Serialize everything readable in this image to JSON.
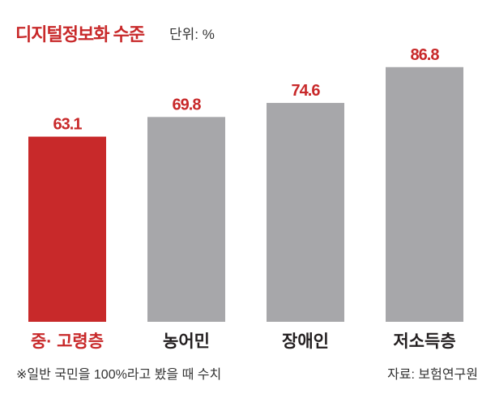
{
  "colors": {
    "title": "#c8292a",
    "value_label": "#c8292a",
    "note": "#333333"
  },
  "chart_data": {
    "type": "bar",
    "title": "디지털정보화 수준",
    "unit_label": "단위: %",
    "categories": [
      "중· 고령층",
      "농어민",
      "장애인",
      "저소득층"
    ],
    "values": [
      63.1,
      69.8,
      74.6,
      86.8
    ],
    "bar_colors": [
      "#c8292a",
      "#a7a7aa",
      "#a7a7aa",
      "#a7a7aa"
    ],
    "category_label_colors": [
      "#c8292a",
      "#231f20",
      "#231f20",
      "#231f20"
    ],
    "ylim": [
      0,
      100
    ],
    "grid": false,
    "legend": "none",
    "note": "※일반 국민을 100%라고 봤을 때 수치",
    "source": "자료: 보험연구원"
  }
}
